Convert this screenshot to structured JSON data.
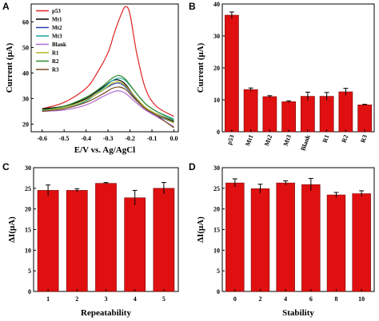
{
  "panels": [
    "A",
    "B",
    "C",
    "D"
  ],
  "chart_data": [
    {
      "id": "A",
      "type": "line",
      "xlabel": "E/V vs. Ag/AgCl",
      "ylabel": "Current (μA)",
      "xlim": [
        -0.65,
        0.02
      ],
      "ylim": [
        17,
        67
      ],
      "xticks": [
        "-0.6",
        "-0.5",
        "-0.4",
        "-0.3",
        "-0.2",
        "-0.1",
        "0.0"
      ],
      "xtick_values": [
        -0.6,
        -0.5,
        -0.4,
        -0.3,
        -0.2,
        -0.1,
        0.0
      ],
      "yticks": [
        "20",
        "30",
        "40",
        "50",
        "60"
      ],
      "ytick_values": [
        20,
        30,
        40,
        50,
        60
      ],
      "legend_position": "top-left",
      "series": [
        {
          "name": "p53",
          "color": "#e02020",
          "x": [
            -0.6,
            -0.5,
            -0.4,
            -0.35,
            -0.3,
            -0.27,
            -0.24,
            -0.22,
            -0.2,
            -0.17,
            -0.13,
            -0.08,
            0.0
          ],
          "y": [
            26,
            28.5,
            34,
            40,
            48,
            56,
            63,
            66,
            63,
            48,
            34,
            27,
            23
          ]
        },
        {
          "name": "Mt1",
          "color": "#000000",
          "x": [
            -0.6,
            -0.5,
            -0.4,
            -0.33,
            -0.28,
            -0.25,
            -0.22,
            -0.18,
            -0.13,
            -0.08,
            0.0
          ],
          "y": [
            26,
            27,
            30,
            34,
            37,
            37.2,
            35.5,
            31,
            26.5,
            24,
            21
          ]
        },
        {
          "name": "Mt2",
          "color": "#2a3fb5",
          "x": [
            -0.6,
            -0.5,
            -0.4,
            -0.33,
            -0.28,
            -0.25,
            -0.22,
            -0.18,
            -0.13,
            -0.08,
            0.0
          ],
          "y": [
            25.5,
            26.5,
            29.5,
            33,
            35.5,
            36,
            34.5,
            30.5,
            26,
            23.5,
            20.5
          ]
        },
        {
          "name": "Mt3",
          "color": "#1aa9a0",
          "x": [
            -0.6,
            -0.5,
            -0.4,
            -0.33,
            -0.28,
            -0.25,
            -0.22,
            -0.18,
            -0.13,
            -0.08,
            0.0
          ],
          "y": [
            25,
            26,
            29,
            33.5,
            37,
            38,
            37,
            33,
            28,
            25,
            22
          ]
        },
        {
          "name": "Blank",
          "color": "#b06ad0",
          "x": [
            -0.6,
            -0.5,
            -0.4,
            -0.33,
            -0.28,
            -0.25,
            -0.22,
            -0.18,
            -0.13,
            -0.08,
            0.0
          ],
          "y": [
            25,
            25.5,
            27.5,
            30.5,
            32.5,
            33,
            32,
            29,
            25.5,
            23,
            19
          ]
        },
        {
          "name": "R1",
          "color": "#b5b520",
          "x": [
            -0.6,
            -0.5,
            -0.4,
            -0.33,
            -0.28,
            -0.25,
            -0.22,
            -0.18,
            -0.13,
            -0.08,
            0.0
          ],
          "y": [
            25.5,
            26.5,
            29.5,
            33,
            36,
            36.5,
            35,
            31,
            26.5,
            24,
            20.5
          ]
        },
        {
          "name": "R2",
          "color": "#2e8b2e",
          "x": [
            -0.6,
            -0.5,
            -0.4,
            -0.33,
            -0.28,
            -0.25,
            -0.22,
            -0.18,
            -0.13,
            -0.08,
            0.0
          ],
          "y": [
            25.5,
            27,
            30.5,
            34.5,
            38,
            39,
            37.5,
            33,
            28,
            25,
            21.5
          ]
        },
        {
          "name": "R3",
          "color": "#7a4a20",
          "x": [
            -0.6,
            -0.5,
            -0.4,
            -0.33,
            -0.28,
            -0.25,
            -0.22,
            -0.18,
            -0.13,
            -0.08,
            0.0
          ],
          "y": [
            25,
            26,
            28.5,
            31.5,
            34,
            34.5,
            33.5,
            30,
            26,
            23.5,
            18.5
          ]
        }
      ]
    },
    {
      "id": "B",
      "type": "bar",
      "xlabel": "",
      "ylabel": "Current (μA)",
      "ylim": [
        0,
        40
      ],
      "yticks": [
        "0",
        "10",
        "20",
        "30",
        "40"
      ],
      "ytick_values": [
        0,
        10,
        20,
        30,
        40
      ],
      "categories": [
        "p53",
        "Mt1",
        "Mt2",
        "Mt3",
        "Blank",
        "R1",
        "R2",
        "R3"
      ],
      "values": [
        36.5,
        13.2,
        11.0,
        9.4,
        11.1,
        11.1,
        12.5,
        8.4
      ],
      "errors": [
        1.0,
        0.5,
        0.3,
        0.3,
        1.3,
        1.2,
        1.1,
        0.2
      ],
      "bar_color": "#e01010"
    },
    {
      "id": "C",
      "type": "bar",
      "xlabel": "Repeatability",
      "ylabel": "ΔI(μA)",
      "ylim": [
        0,
        30
      ],
      "yticks": [
        "0",
        "5",
        "10",
        "15",
        "20",
        "25",
        "30"
      ],
      "ytick_values": [
        0,
        5,
        10,
        15,
        20,
        25,
        30
      ],
      "categories": [
        "1",
        "2",
        "3",
        "4",
        "5"
      ],
      "values": [
        24.5,
        24.5,
        26.2,
        22.7,
        25.0
      ],
      "errors": [
        1.3,
        0.4,
        0.2,
        1.8,
        1.4
      ],
      "bar_color": "#e01010"
    },
    {
      "id": "D",
      "type": "bar",
      "xlabel": "Stability",
      "ylabel": "ΔI(μA)",
      "ylim": [
        0,
        30
      ],
      "yticks": [
        "0",
        "5",
        "10",
        "15",
        "20",
        "25",
        "30"
      ],
      "ytick_values": [
        0,
        5,
        10,
        15,
        20,
        25,
        30
      ],
      "categories": [
        "0",
        "2",
        "4",
        "6",
        "8",
        "10"
      ],
      "values": [
        26.3,
        24.9,
        26.3,
        25.9,
        23.4,
        23.7
      ],
      "errors": [
        1.0,
        1.1,
        0.5,
        1.5,
        0.6,
        0.7
      ],
      "bar_color": "#e01010"
    }
  ]
}
